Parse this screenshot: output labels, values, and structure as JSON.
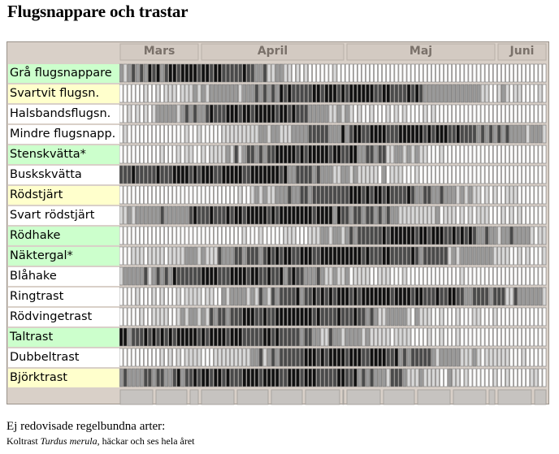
{
  "page": {
    "title": "Flugsnappare och trastar"
  },
  "months": [
    "Mars",
    "April",
    "Maj",
    "Juni"
  ],
  "colors": {
    "frame": "#d9d0c8",
    "row_label_green": "#ccffcc",
    "row_label_yellow": "#ffffcc",
    "row_label_white": "#ffffff",
    "month_text": "#7a716a",
    "bottom_bar": "#c6c3c0"
  },
  "species": [
    {
      "name": "Grå flugsnappare",
      "label_color": "green"
    },
    {
      "name": "Svartvit flugsn.",
      "label_color": "yellow"
    },
    {
      "name": "Halsbandsflugsn.",
      "label_color": "white"
    },
    {
      "name": "Mindre flugsnapp.",
      "label_color": "white"
    },
    {
      "name": "Stenskvätta*",
      "label_color": "green"
    },
    {
      "name": "Buskskvätta",
      "label_color": "white"
    },
    {
      "name": "Rödstjärt",
      "label_color": "yellow"
    },
    {
      "name": "Svart rödstjärt",
      "label_color": "white"
    },
    {
      "name": "Rödhake",
      "label_color": "green"
    },
    {
      "name": "Näktergal*",
      "label_color": "green"
    },
    {
      "name": "Blåhake",
      "label_color": "white"
    },
    {
      "name": "Ringtrast",
      "label_color": "white"
    },
    {
      "name": "Rödvingetrast",
      "label_color": "white"
    },
    {
      "name": "Taltrast",
      "label_color": "green"
    },
    {
      "name": "Dubbeltrast",
      "label_color": "white"
    },
    {
      "name": "Björktrast",
      "label_color": "yellow"
    }
  ],
  "footer": {
    "heading": "Ej redovisade regelbundna arter:",
    "note_prefix": "Koltrast ",
    "note_italic": "Turdus merula",
    "note_suffix": ", häckar och ses hela året"
  }
}
